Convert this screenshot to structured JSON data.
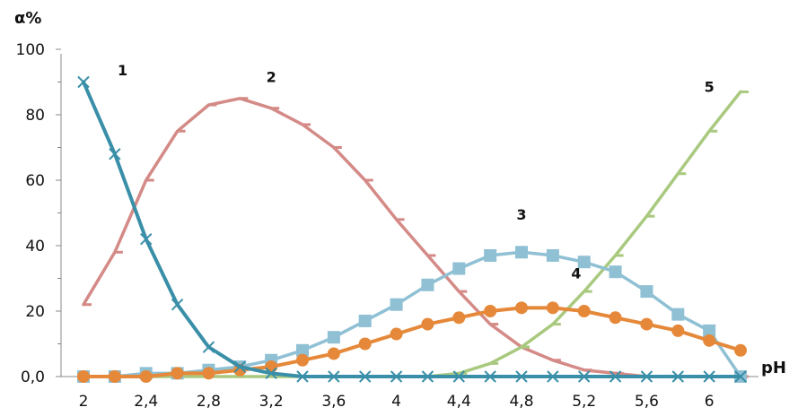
{
  "chart_data": {
    "type": "line",
    "ylabel": "α%",
    "xlabel": "pH",
    "x": [
      2.0,
      2.2,
      2.4,
      2.6,
      2.8,
      3.0,
      3.2,
      3.4,
      3.6,
      3.8,
      4.0,
      4.2,
      4.4,
      4.6,
      4.8,
      5.0,
      5.2,
      5.4,
      5.6,
      5.8,
      6.0,
      6.2
    ],
    "xticks": [
      "2",
      "2,4",
      "2,8",
      "3,2",
      "3,6",
      "4",
      "4,4",
      "4,8",
      "5,2",
      "5,6",
      "6"
    ],
    "xtick_values": [
      2.0,
      2.4,
      2.8,
      3.2,
      3.6,
      4.0,
      4.4,
      4.8,
      5.2,
      5.6,
      6.0
    ],
    "yticks": [
      "0,0",
      "20",
      "40",
      "60",
      "80",
      "100"
    ],
    "ytick_values": [
      0,
      20,
      40,
      60,
      80,
      100
    ],
    "xlim": [
      2.0,
      6.2
    ],
    "ylim": [
      0,
      100
    ],
    "grid": false,
    "series": [
      {
        "name": "1",
        "color": "#3a8fa8",
        "marker": "x",
        "values": [
          90,
          68,
          42,
          22,
          9,
          3,
          1,
          0,
          0,
          0,
          0,
          0,
          0,
          0,
          0,
          0,
          0,
          0,
          0,
          0,
          0,
          0
        ]
      },
      {
        "name": "2",
        "color": "#d48a86",
        "marker": "dash",
        "values": [
          22,
          38,
          60,
          75,
          83,
          85,
          82,
          77,
          70,
          60,
          48,
          37,
          26,
          16,
          9,
          5,
          2,
          1,
          0,
          0,
          0,
          0
        ]
      },
      {
        "name": "3",
        "color": "#8fc0d4",
        "marker": "square",
        "values": [
          0,
          0,
          1,
          1,
          2,
          3,
          5,
          8,
          12,
          17,
          22,
          28,
          33,
          37,
          38,
          37,
          35,
          32,
          26,
          19,
          14,
          0
        ]
      },
      {
        "name": "4",
        "color": "#e58839",
        "marker": "circle",
        "values": [
          0,
          0,
          0,
          1,
          1,
          2,
          3,
          5,
          7,
          10,
          13,
          16,
          18,
          20,
          21,
          21,
          20,
          18,
          16,
          14,
          11,
          8
        ]
      },
      {
        "name": "5",
        "color": "#a9c97f",
        "marker": "dash",
        "values": [
          0,
          0,
          0,
          0,
          0,
          0,
          0,
          0,
          0,
          0,
          0,
          0,
          1,
          4,
          9,
          16,
          26,
          37,
          49,
          62,
          75,
          87
        ]
      }
    ]
  }
}
